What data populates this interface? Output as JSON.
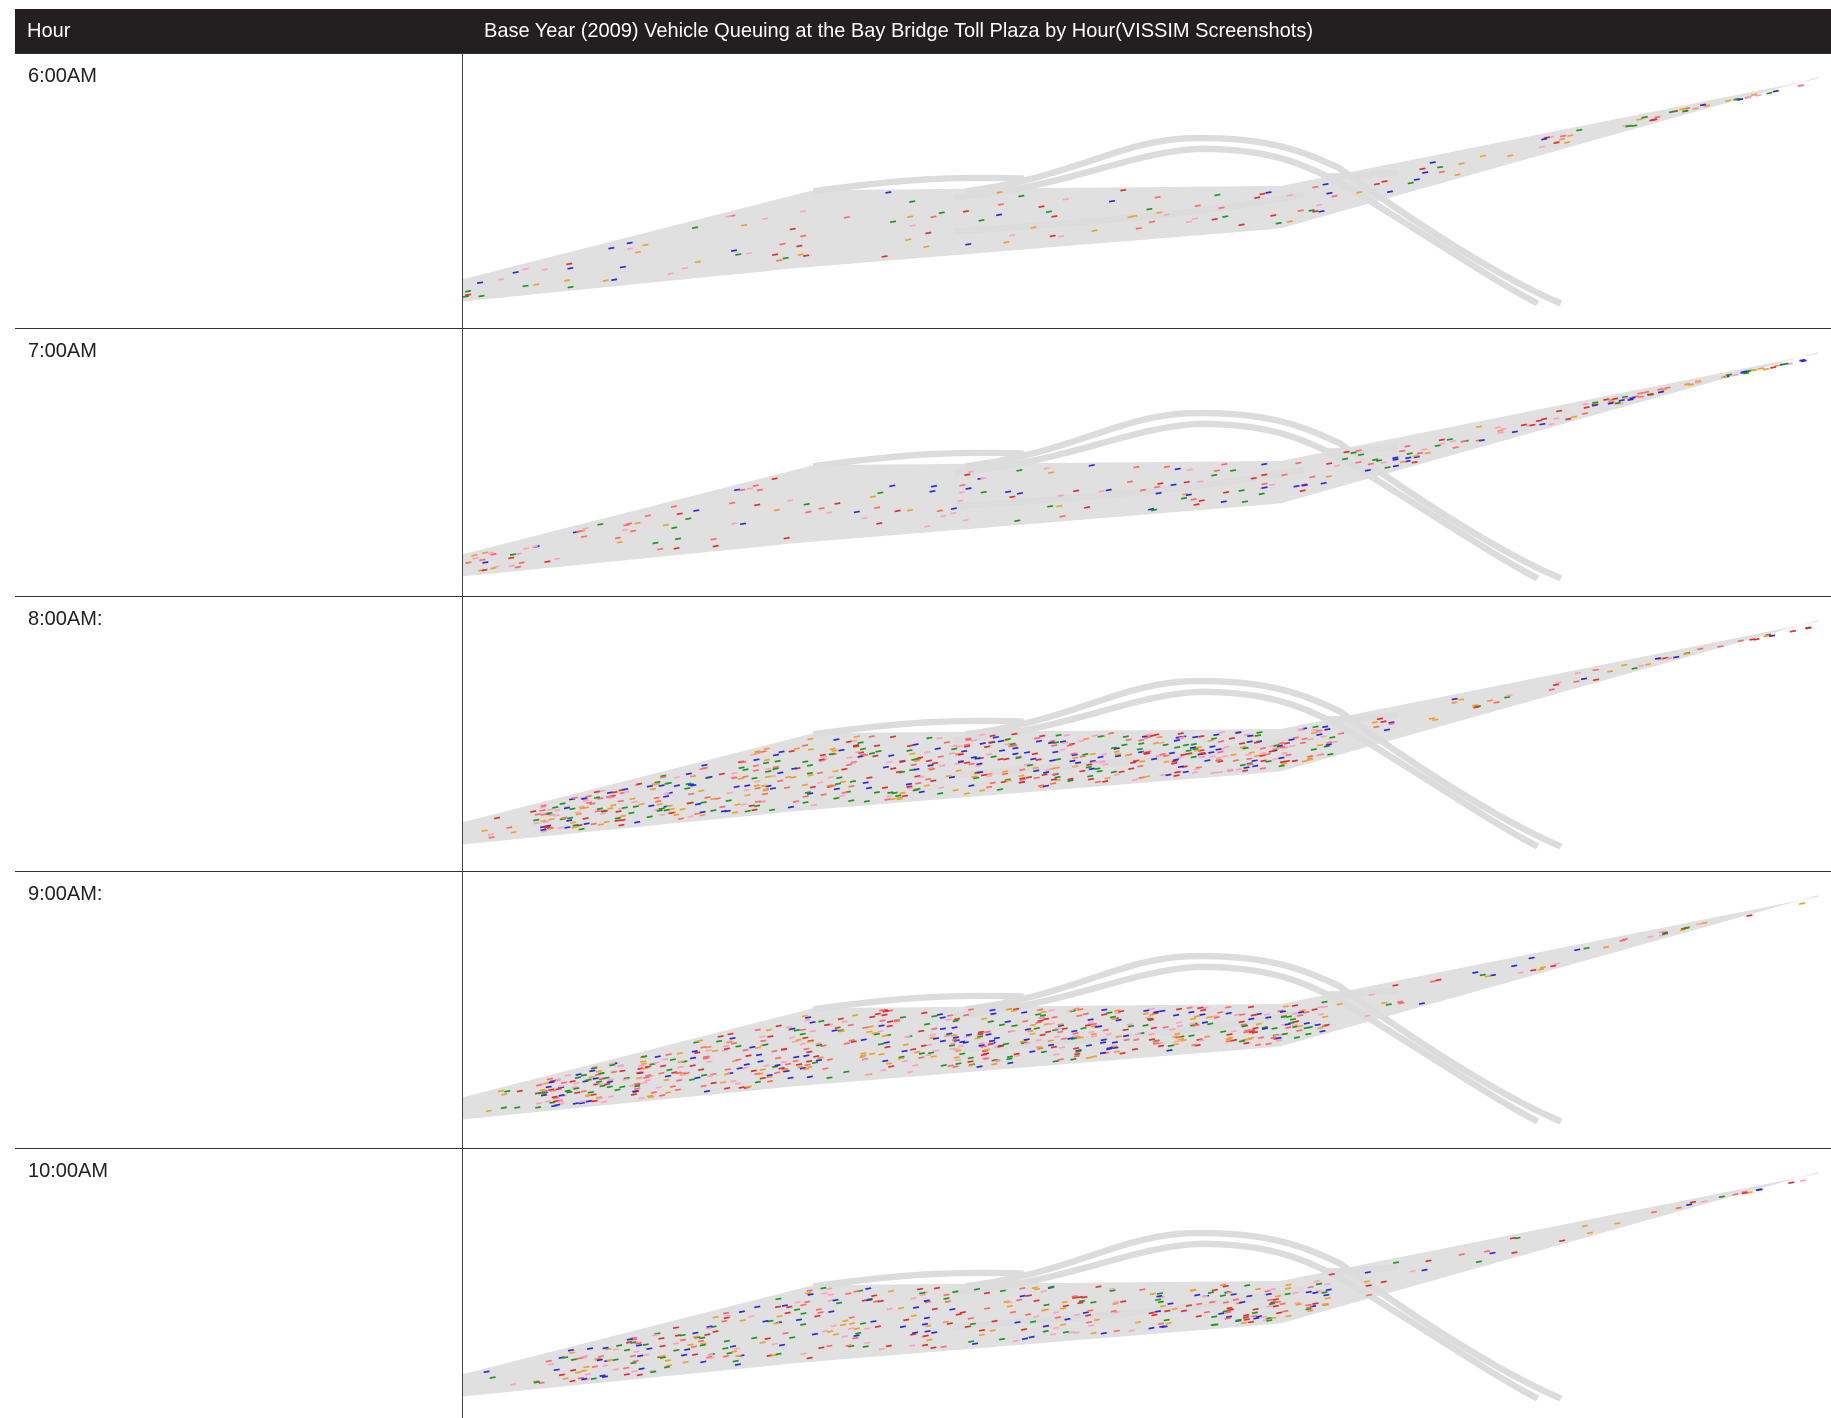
{
  "table": {
    "header": [
      "Hour",
      "Base Year (2009) Vehicle Queuing at the Bay Bridge Toll Plaza by Hour(VISSIM Screenshots)"
    ],
    "rows": [
      [
        "6:00AM"
      ],
      [
        "7:00AM"
      ],
      [
        "8:00AM:"
      ],
      [
        "9:00AM:"
      ],
      [
        "10:00AM"
      ]
    ]
  }
}
